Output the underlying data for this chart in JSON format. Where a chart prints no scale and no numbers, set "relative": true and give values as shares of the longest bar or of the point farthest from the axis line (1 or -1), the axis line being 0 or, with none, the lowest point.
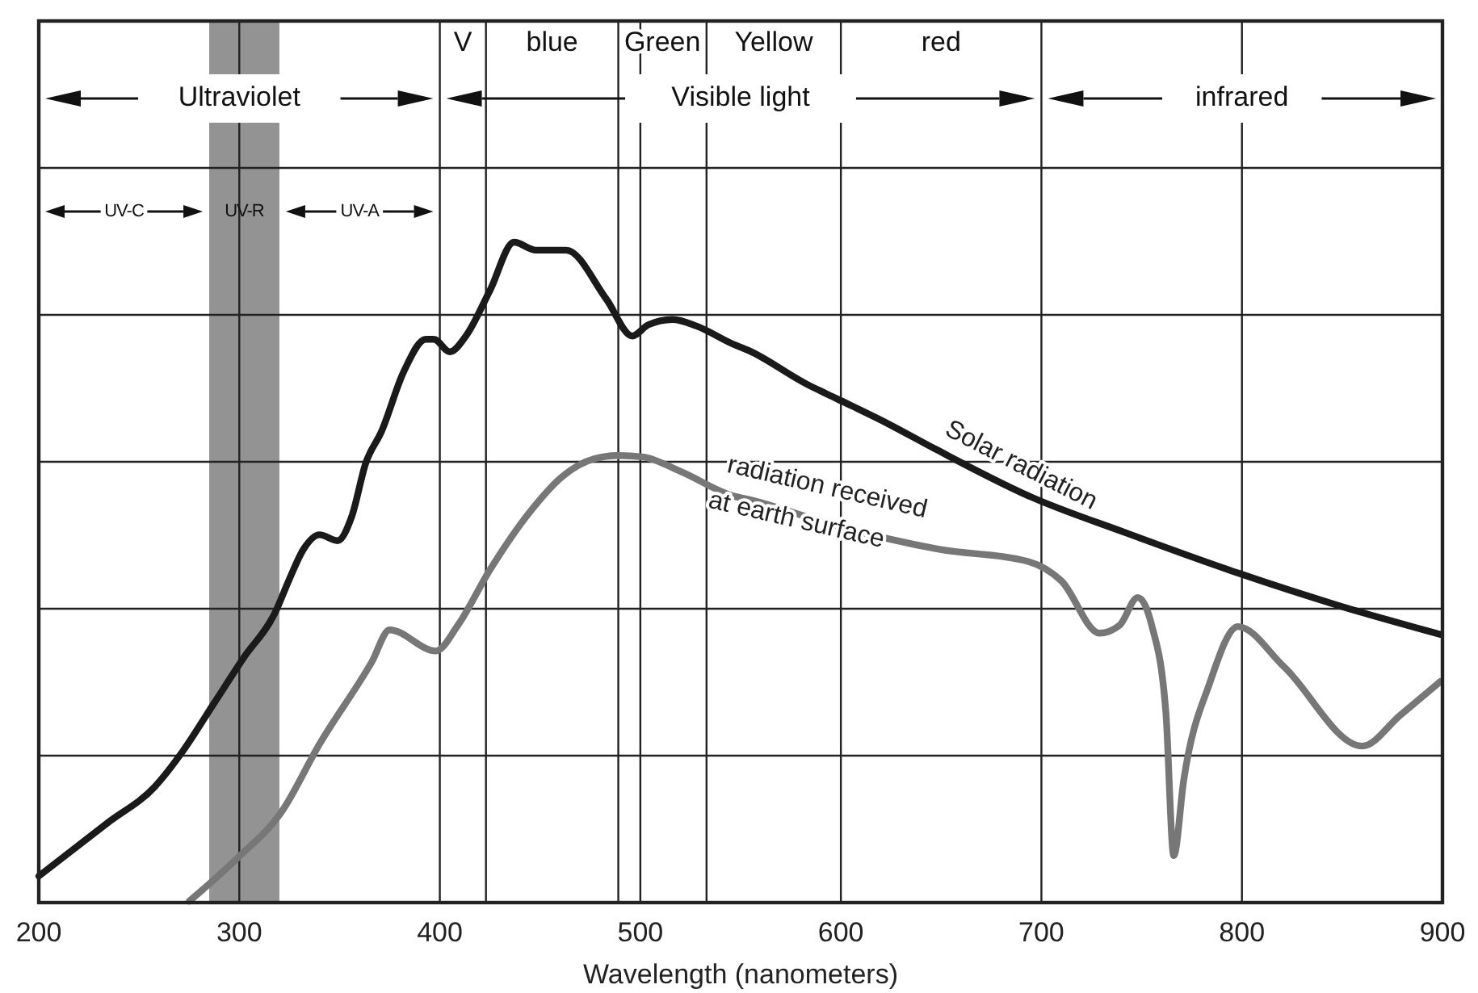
{
  "chart_data": {
    "type": "line",
    "relative": true,
    "xlabel": "Wavelength (nanometers)",
    "xlim": [
      200,
      900
    ],
    "xticks": [
      200,
      300,
      400,
      500,
      600,
      700,
      800,
      900
    ],
    "grid": true,
    "legend": false,
    "line_style": "solid",
    "marker": "none",
    "series": [
      {
        "name": "Solar radiation",
        "color": "#1a1a1a",
        "x": [
          200,
          234,
          258,
          272,
          287,
          302,
          318,
          325,
          332,
          340,
          349,
          356,
          363,
          371,
          382,
          393,
          397,
          405,
          413,
          425,
          437,
          448,
          463,
          483,
          496,
          504,
          516,
          528,
          546,
          554,
          583,
          598,
          623,
          647,
          695,
          742,
          798,
          848,
          899
        ],
        "values": [
          0.04,
          0.12,
          0.176,
          0.23,
          0.3,
          0.37,
          0.44,
          0.49,
          0.535,
          0.557,
          0.548,
          0.584,
          0.665,
          0.714,
          0.804,
          0.853,
          0.853,
          0.834,
          0.858,
          0.927,
          1,
          0.988,
          0.988,
          0.914,
          0.858,
          0.875,
          0.883,
          0.873,
          0.846,
          0.836,
          0.785,
          0.763,
          0.726,
          0.687,
          0.614,
          0.56,
          0.499,
          0.45,
          0.406
        ]
      },
      {
        "name": "radiation received at earth surface",
        "color": "#777777",
        "x": [
          275,
          300,
          321,
          340,
          366,
          375,
          398,
          409,
          425,
          445,
          461,
          477,
          489,
          501,
          520,
          546,
          556,
          596,
          649,
          694,
          710,
          729,
          739,
          748,
          755,
          762,
          766,
          771,
          784,
          798,
          821,
          860,
          879,
          899
        ],
        "values": [
          0.002,
          0.07,
          0.137,
          0.24,
          0.364,
          0.413,
          0.381,
          0.42,
          0.504,
          0.592,
          0.645,
          0.672,
          0.677,
          0.675,
          0.653,
          0.616,
          0.609,
          0.572,
          0.535,
          0.516,
          0.487,
          0.408,
          0.42,
          0.462,
          0.42,
          0.291,
          0.071,
          0.186,
          0.333,
          0.418,
          0.357,
          0.237,
          0.284,
          0.335
        ]
      }
    ],
    "ref_lines": [
      {
        "axis": "x",
        "value": 423
      },
      {
        "axis": "x",
        "value": 489
      },
      {
        "axis": "x",
        "value": 533
      }
    ],
    "annotations": [
      "V",
      "blue",
      "Green",
      "Yellow",
      "red",
      "Ultraviolet",
      "Visible light",
      "infrared",
      "UV-C",
      "UV-A"
    ],
    "bands": [
      {
        "axis": "x",
        "from": 285,
        "to": 320,
        "label": "UV-R",
        "color": "#939393"
      }
    ]
  }
}
